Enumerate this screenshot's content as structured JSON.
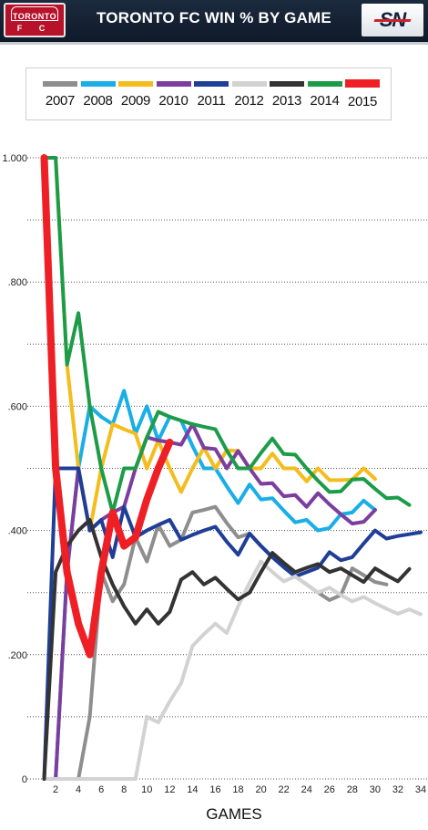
{
  "header": {
    "title": "TORONTO FC WIN % BY GAME",
    "team_logo_text": "TORONTO",
    "team_logo_sub": "F C",
    "network_logo_text": "SN"
  },
  "chart_data": {
    "type": "line",
    "title": "TORONTO FC WIN % BY GAME",
    "xlabel": "GAMES",
    "ylabel": "",
    "xlim": [
      0,
      34
    ],
    "ylim": [
      0,
      1
    ],
    "grid": true,
    "legend_position": "top",
    "x_ticks": [
      "2",
      "4",
      "6",
      "8",
      "10",
      "12",
      "14",
      "16",
      "18",
      "20",
      "22",
      "24",
      "26",
      "28",
      "30",
      "32",
      "34"
    ],
    "y_ticks": [
      "0",
      ".200",
      ".400",
      ".600",
      ".800",
      "1.000"
    ],
    "series": [
      {
        "name": "2007",
        "color": "#8e8e8e",
        "width": 4,
        "values": [
          0,
          0,
          0,
          0,
          0.1,
          0.333,
          0.286,
          0.313,
          0.389,
          0.35,
          0.409,
          0.375,
          0.385,
          0.429,
          0.433,
          0.438,
          0.412,
          0.389,
          0.395,
          0.375,
          0.357,
          0.341,
          0.326,
          0.313,
          0.3,
          0.288,
          0.296,
          0.339,
          0.328,
          0.317,
          0.313
        ]
      },
      {
        "name": "2008",
        "color": "#19aee6",
        "width": 4,
        "values": [
          0,
          0,
          0.333,
          0.5,
          0.6,
          0.583,
          0.571,
          0.625,
          0.556,
          0.6,
          0.545,
          0.583,
          0.577,
          0.536,
          0.5,
          0.5,
          0.471,
          0.444,
          0.474,
          0.45,
          0.452,
          0.432,
          0.413,
          0.417,
          0.4,
          0.404,
          0.426,
          0.429,
          0.448,
          0.433
        ]
      },
      {
        "name": "2009",
        "color": "#f4bc1c",
        "width": 4,
        "values": [
          1,
          1,
          0.667,
          0.5,
          0.4,
          0.5,
          0.571,
          0.563,
          0.556,
          0.5,
          0.545,
          0.5,
          0.462,
          0.5,
          0.533,
          0.5,
          0.529,
          0.528,
          0.5,
          0.5,
          0.524,
          0.5,
          0.5,
          0.479,
          0.5,
          0.481,
          0.481,
          0.482,
          0.5,
          0.483
        ]
      },
      {
        "name": "2010",
        "color": "#7c3e9e",
        "width": 4,
        "values": [
          0,
          0,
          0.333,
          0.5,
          0.4,
          0.417,
          0.429,
          0.438,
          0.5,
          0.55,
          0.545,
          0.542,
          0.538,
          0.571,
          0.533,
          0.531,
          0.5,
          0.528,
          0.5,
          0.475,
          0.476,
          0.455,
          0.457,
          0.438,
          0.46,
          0.442,
          0.426,
          0.411,
          0.414,
          0.433
        ]
      },
      {
        "name": "2011",
        "color": "#1f3e98",
        "width": 4,
        "values": [
          0,
          0.5,
          0.5,
          0.5,
          0.4,
          0.417,
          0.357,
          0.438,
          0.389,
          0.4,
          0.409,
          0.417,
          0.385,
          0.393,
          0.4,
          0.406,
          0.382,
          0.361,
          0.395,
          0.375,
          0.357,
          0.341,
          0.326,
          0.333,
          0.34,
          0.365,
          0.352,
          0.357,
          0.379,
          0.4,
          0.387,
          0.391,
          0.394,
          0.397
        ]
      },
      {
        "name": "2012",
        "color": "#d2d2d2",
        "width": 4,
        "values": [
          0,
          0,
          0,
          0,
          0,
          0,
          0,
          0,
          0,
          0.1,
          0.091,
          0.125,
          0.154,
          0.214,
          0.233,
          0.25,
          0.235,
          0.278,
          0.316,
          0.35,
          0.333,
          0.318,
          0.326,
          0.313,
          0.3,
          0.308,
          0.296,
          0.286,
          0.293,
          0.283,
          0.274,
          0.266,
          0.273,
          0.265
        ]
      },
      {
        "name": "2013",
        "color": "#333333",
        "width": 4,
        "values": [
          0,
          0.333,
          0.375,
          0.4,
          0.417,
          0.357,
          0.313,
          0.278,
          0.25,
          0.273,
          0.25,
          0.269,
          0.321,
          0.333,
          0.313,
          0.324,
          0.306,
          0.289,
          0.3,
          0.333,
          0.364,
          0.348,
          0.333,
          0.34,
          0.346,
          0.333,
          0.339,
          0.328,
          0.317,
          0.339,
          0.328,
          0.318,
          0.338
        ]
      },
      {
        "name": "2014",
        "color": "#1c9c48",
        "width": 4,
        "values": [
          1,
          1,
          0.667,
          0.75,
          0.6,
          0.5,
          0.429,
          0.5,
          0.5,
          0.55,
          0.591,
          0.583,
          0.577,
          0.571,
          0.567,
          0.563,
          0.529,
          0.5,
          0.5,
          0.525,
          0.548,
          0.523,
          0.522,
          0.5,
          0.48,
          0.462,
          0.463,
          0.482,
          0.483,
          0.467,
          0.452,
          0.453,
          0.441
        ]
      },
      {
        "name": "2015",
        "color": "#ee1f25",
        "width": 8,
        "values": [
          1,
          0.5,
          0.333,
          0.25,
          0.2,
          0.333,
          0.429,
          0.375,
          0.389,
          0.45,
          0.5,
          0.542
        ]
      }
    ]
  }
}
